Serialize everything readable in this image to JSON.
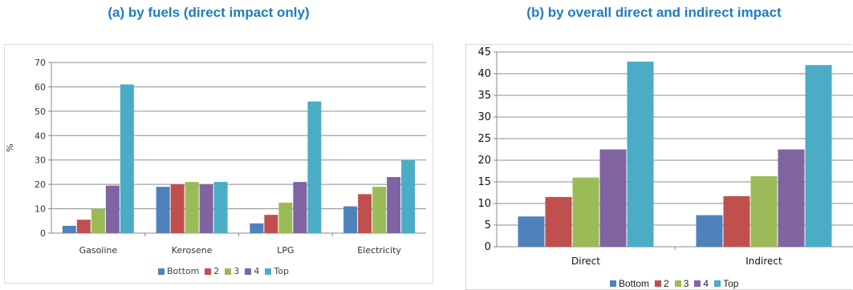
{
  "colors": {
    "Bottom": "#4f81bd",
    "2": "#c0504d",
    "3": "#9bbb59",
    "4": "#8064a2",
    "Top": "#4bacc6",
    "title": "#1f7bc1"
  },
  "chart_data": [
    {
      "type": "bar",
      "title": "(a) by fuels (direct impact only)",
      "xlabel": "",
      "ylabel": "%",
      "ylim": [
        0,
        70
      ],
      "yticks": [
        "0",
        "10",
        "20",
        "30",
        "40",
        "50",
        "60",
        "70"
      ],
      "grid": true,
      "legend_position": "bottom",
      "categories": [
        "Gasoline",
        "Kerosene",
        "LPG",
        "Electricity"
      ],
      "series": [
        {
          "name": "Bottom",
          "values": [
            3,
            19,
            4,
            11
          ]
        },
        {
          "name": "2",
          "values": [
            5.5,
            20,
            7.5,
            16
          ]
        },
        {
          "name": "3",
          "values": [
            10,
            21,
            12.5,
            19
          ]
        },
        {
          "name": "4",
          "values": [
            19.5,
            20,
            21,
            23
          ]
        },
        {
          "name": "Top",
          "values": [
            61,
            21,
            54,
            30
          ]
        }
      ]
    },
    {
      "type": "bar",
      "title": "(b) by overall direct and indirect impact",
      "xlabel": "",
      "ylabel": "",
      "ylim": [
        0,
        45
      ],
      "yticks": [
        "0",
        "5",
        "10",
        "15",
        "20",
        "25",
        "30",
        "35",
        "40",
        "45"
      ],
      "grid": true,
      "legend_position": "bottom",
      "categories": [
        "Direct",
        "Indirect"
      ],
      "series": [
        {
          "name": "Bottom",
          "values": [
            7,
            7.3
          ]
        },
        {
          "name": "2",
          "values": [
            11.5,
            11.7
          ]
        },
        {
          "name": "3",
          "values": [
            16,
            16.3
          ]
        },
        {
          "name": "4",
          "values": [
            22.5,
            22.5
          ]
        },
        {
          "name": "Top",
          "values": [
            42.8,
            42
          ]
        }
      ]
    }
  ]
}
